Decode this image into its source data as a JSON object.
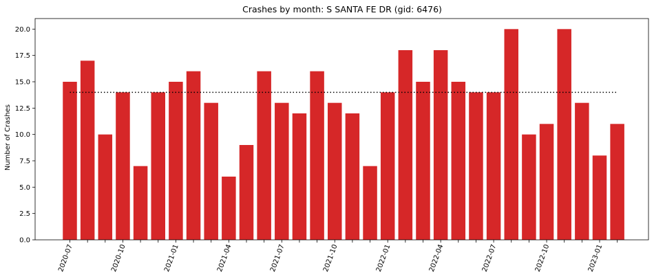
{
  "chart_data": {
    "type": "bar",
    "title": "Crashes by month: S SANTA FE DR (gid: 6476)",
    "xlabel": "",
    "ylabel": "Number of Crashes",
    "categories": [
      "2020-07",
      "2020-08",
      "2020-09",
      "2020-10",
      "2020-11",
      "2020-12",
      "2021-01",
      "2021-02",
      "2021-03",
      "2021-04",
      "2021-05",
      "2021-06",
      "2021-07",
      "2021-08",
      "2021-09",
      "2021-10",
      "2021-11",
      "2021-12",
      "2022-01",
      "2022-02",
      "2022-03",
      "2022-04",
      "2022-05",
      "2022-06",
      "2022-07",
      "2022-08",
      "2022-09",
      "2022-10",
      "2022-11",
      "2022-12",
      "2023-01",
      "2023-02"
    ],
    "values": [
      15,
      17,
      10,
      14,
      7,
      14,
      15,
      16,
      13,
      6,
      9,
      16,
      13,
      12,
      16,
      13,
      12,
      7,
      14,
      18,
      15,
      18,
      15,
      14,
      14,
      20,
      10,
      11,
      20,
      13,
      8,
      11
    ],
    "color": "#d62728",
    "reference_line": {
      "value": 14,
      "style": "dotted",
      "color": "#000000"
    },
    "ylim": [
      0,
      21
    ],
    "y_ticks": [
      "0.0",
      "2.5",
      "5.0",
      "7.5",
      "10.0",
      "12.5",
      "15.0",
      "17.5",
      "20.0"
    ],
    "x_tick_labels": [
      "2020-07",
      "2020-10",
      "2021-01",
      "2021-04",
      "2021-07",
      "2021-10",
      "2022-01",
      "2022-04",
      "2022-07",
      "2022-10",
      "2023-01"
    ],
    "grid": false,
    "legend": "none"
  }
}
